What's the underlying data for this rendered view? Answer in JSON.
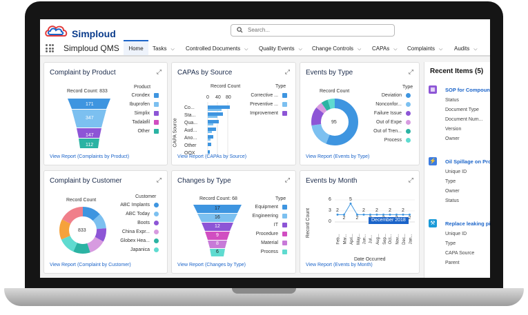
{
  "app": {
    "logo_text": "Simploud",
    "name": "Simploud QMS"
  },
  "search": {
    "placeholder": "Search..."
  },
  "nav": {
    "items": [
      {
        "label": "Home",
        "dropdown": false
      },
      {
        "label": "Tasks",
        "dropdown": true
      },
      {
        "label": "Controlled Documents",
        "dropdown": true
      },
      {
        "label": "Quality Events",
        "dropdown": true
      },
      {
        "label": "Change Controls",
        "dropdown": true
      },
      {
        "label": "CAPAs",
        "dropdown": true
      },
      {
        "label": "Complaints",
        "dropdown": true
      },
      {
        "label": "Audits",
        "dropdown": true
      }
    ]
  },
  "cards": {
    "complaint_product": {
      "title": "Complaint by Product",
      "record_count": "Record Count: 833",
      "legend_title": "Product",
      "legend": [
        {
          "label": "Crondex",
          "color": "#3e95e0"
        },
        {
          "label": "Ibuprofen",
          "color": "#7cc0f0"
        },
        {
          "label": "Simplix",
          "color": "#8d55d6"
        },
        {
          "label": "Tadalafil",
          "color": "#d14ec1"
        },
        {
          "label": "Other",
          "color": "#2bb3a3"
        }
      ],
      "funnel": [
        "171",
        "347",
        "147",
        "112"
      ],
      "link": "View Report (Complaints by Product)"
    },
    "capas_source": {
      "title": "CAPAs by Source",
      "record_count": "Record Count",
      "ticks": [
        "0",
        "40",
        "80"
      ],
      "ylabel": "CAPA Source",
      "categories": [
        "Co...",
        "Sta...",
        "Qua...",
        "Aud...",
        "Ano...",
        "Other",
        "OOX"
      ],
      "legend_title": "Type",
      "legend": [
        {
          "label": "Corrective ...",
          "color": "#3e95e0"
        },
        {
          "label": "Preventive ...",
          "color": "#7cc0f0"
        },
        {
          "label": "Improvement",
          "color": "#8d55d6"
        }
      ],
      "link": "View Report (CAPAs by Source)"
    },
    "events_type": {
      "title": "Events by Type",
      "record_count": "Record Count",
      "center": "95",
      "legend_title": "Type",
      "legend": [
        {
          "label": "Deviation",
          "color": "#3e95e0"
        },
        {
          "label": "Nonconfor...",
          "color": "#7cc0f0"
        },
        {
          "label": "Failure Issue",
          "color": "#8d55d6"
        },
        {
          "label": "Out of Expe",
          "color": "#d79be0"
        },
        {
          "label": "Out of Tren...",
          "color": "#2bb3a3"
        },
        {
          "label": "Process",
          "color": "#5fdbd0"
        }
      ],
      "link": "View Report (Events by Type)"
    },
    "complaint_customer": {
      "title": "Complaint by Customer",
      "record_count": "Record Count",
      "center": "833",
      "legend_title": "Customer",
      "legend": [
        {
          "label": "ABC Implants",
          "color": "#3e95e0"
        },
        {
          "label": "ABC Today",
          "color": "#7cc0f0"
        },
        {
          "label": "Boots",
          "color": "#8d55d6"
        },
        {
          "label": "China Expr...",
          "color": "#d79be0"
        },
        {
          "label": "Globex Hea...",
          "color": "#2bb3a3"
        },
        {
          "label": "Japanica",
          "color": "#5fdbd0"
        }
      ],
      "link": "View Report (Complaint by Customer)"
    },
    "changes_type": {
      "title": "Changes by Type",
      "record_count": "Record Count: 68",
      "funnel": [
        "17",
        "16",
        "12",
        "9",
        "8",
        "6"
      ],
      "legend_title": "Type",
      "legend": [
        {
          "label": "Equipment",
          "color": "#3e95e0"
        },
        {
          "label": "Engineering",
          "color": "#7cc0f0"
        },
        {
          "label": "IT",
          "color": "#8d55d6"
        },
        {
          "label": "Procedure",
          "color": "#d14ec1"
        },
        {
          "label": "Material",
          "color": "#c77ad8"
        },
        {
          "label": "Process",
          "color": "#5fdbd0"
        }
      ],
      "link": "View Report (Changes by Type)"
    },
    "events_month": {
      "title": "Events by Month",
      "ylabel": "Record Count",
      "xlabel": "Date Occurred",
      "tooltip": "December 2018",
      "ticks": [
        "6",
        "3",
        "0"
      ],
      "months": [
        "Feb...",
        "Mar...",
        "Apri...",
        "May...",
        "Jun...",
        "Jul...",
        "Aug...",
        "Sep...",
        "Oct...",
        "Nov...",
        "Dec...",
        "Jan..."
      ],
      "values": [
        2,
        2,
        5,
        2,
        2,
        2,
        2,
        2,
        2,
        2,
        2,
        2
      ],
      "link": "View Report (Events by Month)"
    }
  },
  "recent": {
    "title": "Recent Items (5)",
    "items": [
      {
        "title": "SOP for Compoun",
        "icon_color": "#8d55d6",
        "fields": [
          "Status",
          "Document Type",
          "Document Num...",
          "Version",
          "Owner"
        ]
      },
      {
        "title": "Oil Spillage on Pro",
        "icon_color": "#3e7de0",
        "fields": [
          "Unique ID",
          "Type",
          "Owner",
          "Status"
        ]
      },
      {
        "title": "Replace leaking pi",
        "icon_color": "#1a9ad8",
        "fields": [
          "Unique ID",
          "Type",
          "CAPA Source",
          "Parent"
        ]
      }
    ]
  }
}
